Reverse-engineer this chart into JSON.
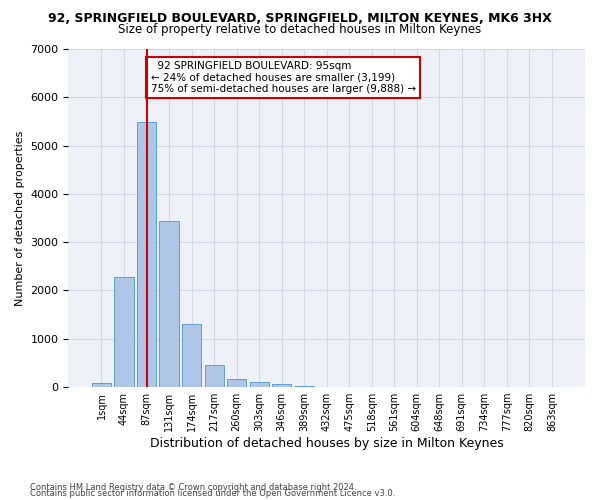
{
  "title": "92, SPRINGFIELD BOULEVARD, SPRINGFIELD, MILTON KEYNES, MK6 3HX",
  "subtitle": "Size of property relative to detached houses in Milton Keynes",
  "xlabel": "Distribution of detached houses by size in Milton Keynes",
  "ylabel": "Number of detached properties",
  "bin_labels": [
    "1sqm",
    "44sqm",
    "87sqm",
    "131sqm",
    "174sqm",
    "217sqm",
    "260sqm",
    "303sqm",
    "346sqm",
    "389sqm",
    "432sqm",
    "475sqm",
    "518sqm",
    "561sqm",
    "604sqm",
    "648sqm",
    "691sqm",
    "734sqm",
    "777sqm",
    "820sqm",
    "863sqm"
  ],
  "bar_values": [
    75,
    2270,
    5480,
    3430,
    1310,
    460,
    160,
    100,
    55,
    30,
    0,
    0,
    0,
    0,
    0,
    0,
    0,
    0,
    0,
    0,
    0
  ],
  "bar_color": "#aec6e8",
  "bar_edge_color": "#5a9fd4",
  "property_line_x": 2,
  "property_line_label": "92 SPRINGFIELD BOULEVARD: 95sqm",
  "smaller_pct": "24%",
  "smaller_count": "3,199",
  "larger_pct": "75%",
  "larger_count": "9,888",
  "annotation_box_color": "#ffffff",
  "annotation_box_edge_color": "#cc0000",
  "grid_color": "#d0d8e8",
  "background_color": "#eef2f8",
  "footer_line1": "Contains HM Land Registry data © Crown copyright and database right 2024.",
  "footer_line2": "Contains public sector information licensed under the Open Government Licence v3.0.",
  "ylim": [
    0,
    7000
  ],
  "yticks": [
    0,
    1000,
    2000,
    3000,
    4000,
    5000,
    6000,
    7000
  ]
}
